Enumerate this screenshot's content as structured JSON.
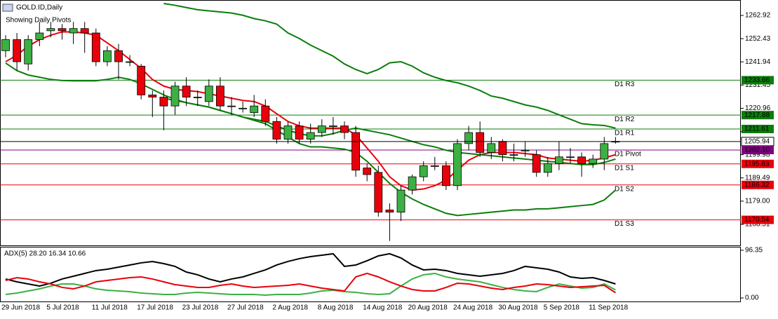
{
  "chart_data": [
    {
      "type": "candlestick",
      "title": "GOLD.ID,Daily",
      "subtitle": "Showing Daily Pivots",
      "categories": [
        "29 Jun 2018",
        null,
        null,
        null,
        "5 Jul 2018",
        null,
        null,
        null,
        "11 Jul 2018",
        null,
        null,
        null,
        "17 Jul 2018",
        null,
        null,
        null,
        "23 Jul 2018",
        null,
        null,
        null,
        "27 Jul 2018",
        null,
        null,
        null,
        "2 Aug 2018",
        null,
        null,
        null,
        "8 Aug 2018",
        null,
        null,
        null,
        "14 Aug 2018",
        null,
        null,
        null,
        "20 Aug 2018",
        null,
        null,
        null,
        "24 Aug 2018",
        null,
        null,
        null,
        "30 Aug 2018",
        null,
        null,
        null,
        "5 Sep 2018",
        null,
        null,
        null,
        "11 Sep 2018",
        null,
        null
      ],
      "open": [
        1247,
        1252,
        1241,
        1252,
        1256,
        1257,
        1255,
        1257,
        1255,
        1242,
        1247,
        1242,
        1240,
        1227,
        1226,
        1222,
        1231,
        1226,
        1224,
        1231,
        1222,
        1221,
        1219,
        1222,
        1215,
        1207,
        1213,
        1207,
        1210,
        1213,
        1213,
        1210,
        1194,
        1192,
        1175,
        1174,
        1184,
        1190,
        1195,
        1195,
        1186,
        1205,
        1210,
        1201,
        1206,
        1200,
        1202,
        1200,
        1192,
        1196,
        1199,
        1199,
        1196,
        1198,
        1206
      ],
      "high": [
        1254,
        1255,
        1254,
        1260,
        1260,
        1259,
        1260,
        1260,
        1257,
        1249,
        1250,
        1245,
        1241,
        1229,
        1229,
        1233,
        1235,
        1229,
        1234,
        1235,
        1226,
        1224,
        1227,
        1225,
        1217,
        1215,
        1215,
        1214,
        1216,
        1217,
        1215,
        1213,
        1196,
        1195,
        1178,
        1186,
        1191,
        1197,
        1199,
        1197,
        1207,
        1213,
        1215,
        1208,
        1207,
        1205,
        1206,
        1202,
        1199,
        1206,
        1203,
        1201,
        1200,
        1208,
        1208
      ],
      "low": [
        1244,
        1238,
        1238,
        1249,
        1253,
        1252,
        1250,
        1246,
        1240,
        1240,
        1234,
        1240,
        1225,
        1217,
        1211,
        1218,
        1222,
        1222,
        1222,
        1220,
        1218,
        1219,
        1217,
        1213,
        1205,
        1205,
        1205,
        1205,
        1208,
        1209,
        1207,
        1190,
        1188,
        1172,
        1161,
        1170,
        1182,
        1188,
        1193,
        1184,
        1184,
        1202,
        1199,
        1198,
        1197,
        1197,
        1199,
        1190,
        1190,
        1193,
        1196,
        1190,
        1194,
        1193,
        1205
      ],
      "close": [
        1252,
        1242,
        1252,
        1255,
        1257,
        1256,
        1257,
        1255,
        1242,
        1247,
        1242,
        1242,
        1227,
        1226,
        1222,
        1231,
        1226,
        1226,
        1231,
        1222,
        1222,
        1221,
        1222,
        1215,
        1207,
        1213,
        1207,
        1210,
        1213,
        1213,
        1210,
        1193,
        1191,
        1174,
        1174,
        1184,
        1190,
        1195,
        1195,
        1186,
        1205,
        1210,
        1201,
        1205,
        1200,
        1200,
        1202,
        1192,
        1196,
        1199,
        1199,
        1196,
        1198,
        1205,
        1206
      ],
      "up_color": "#3cb043",
      "down_color": "#e8000b",
      "series": [
        {
          "color": "#e8000b",
          "values": [
            1242,
            1245,
            1249,
            1252,
            1254,
            1255.5,
            1255.5,
            1255,
            1254,
            1250.5,
            1247,
            1243,
            1239,
            1234,
            1231,
            1229.5,
            1229,
            1228.5,
            1227.5,
            1226.5,
            1225.5,
            1224.5,
            1224,
            1222,
            1218.5,
            1215,
            1213,
            1212,
            1212,
            1212,
            1212,
            1209,
            1203,
            1197,
            1190,
            1186,
            1184,
            1184.5,
            1186,
            1188.5,
            1193,
            1197.5,
            1200,
            1201,
            1201,
            1201,
            1200.5,
            1200,
            1198.5,
            1198,
            1197.5,
            1197,
            1197.5,
            1198.5,
            1200
          ]
        },
        {
          "color": "#0b7d0b",
          "values": [
            1241.4,
            1238,
            1236,
            1235,
            1234,
            1233.5,
            1233.4,
            1233.4,
            1233.4,
            1234,
            1235,
            1234,
            1232,
            1229.5,
            1227,
            1225,
            1223.5,
            1222.5,
            1221.5,
            1220,
            1218.5,
            1217,
            1216,
            1215,
            1213,
            1211,
            1209.5,
            1208.5,
            1208.5,
            1209.5,
            1211,
            1212,
            1211,
            1210,
            1209,
            1207.5,
            1206,
            1204.5,
            1203.5,
            1202,
            1201,
            1200.5,
            1200,
            1199.5,
            1199,
            1198.5,
            1198,
            1197.5,
            1197,
            1196.5,
            1196,
            1195.5,
            1195.5,
            1196.5,
            1198
          ]
        },
        {
          "color": "#0b7d0b",
          "values": [
            null,
            null,
            null,
            null,
            null,
            null,
            null,
            null,
            null,
            null,
            null,
            null,
            null,
            null,
            1268.3,
            1267.5,
            1266.5,
            1265.5,
            1265,
            1264.5,
            1264,
            1263,
            1261.5,
            1260.5,
            1259,
            1255,
            1252.5,
            1249.5,
            1247,
            1244.5,
            1241,
            1238.5,
            1236.6,
            1238.5,
            1241.5,
            1242,
            1240,
            1237,
            1235,
            1233.5,
            1232.5,
            1231,
            1229,
            1226.5,
            1225.5,
            1224,
            1222.5,
            1221.5,
            1220,
            1218,
            1216,
            1214,
            1213.5,
            1213.2,
            1212
          ]
        },
        {
          "color": "#0b7d0b",
          "values": [
            null,
            null,
            null,
            null,
            null,
            null,
            null,
            null,
            null,
            null,
            null,
            null,
            null,
            null,
            1225.5,
            1224.5,
            1223.5,
            1222.5,
            1221.5,
            1220,
            1218.5,
            1217,
            1215.5,
            1214,
            1211,
            1208,
            1205,
            1203.5,
            1203.5,
            1203,
            1202.5,
            1201,
            1197,
            1192,
            1187,
            1183,
            1180,
            1177.5,
            1175.5,
            1173.5,
            1172.5,
            1173,
            1173.5,
            1174,
            1174.5,
            1175,
            1175,
            1175.5,
            1175.5,
            1176,
            1176.5,
            1177,
            1177.5,
            1179.5,
            1184
          ]
        }
      ],
      "levels": [
        {
          "name": "D1 R3",
          "value": 1233.66,
          "value_label": "1233.66",
          "color": "#0b7d0b"
        },
        {
          "name": "D1 R2",
          "value": 1217.88,
          "value_label": "1217.88",
          "color": "#0b7d0b"
        },
        {
          "name": "D1 R1",
          "value": 1211.61,
          "value_label": "1211.61",
          "color": "#0b7d0b"
        },
        {
          "name": "D1 Pivot",
          "value": 1202.1,
          "value_label": "1202.10",
          "color": "#800080"
        },
        {
          "name": "D1 S1",
          "value": 1195.83,
          "value_label": "1195.83",
          "color": "#e8000b"
        },
        {
          "name": "D1 S2",
          "value": 1186.32,
          "value_label": "1186.32",
          "color": "#e8000b"
        },
        {
          "name": "D1 S3",
          "value": 1170.54,
          "value_label": "1170.54",
          "color": "#e8000b"
        }
      ],
      "current_price": 1205.94,
      "ylim": [
        1159.0,
        1269.9
      ],
      "yticks": [
        1262.92,
        1252.43,
        1241.94,
        1231.45,
        1220.96,
        1210.47,
        1199.98,
        1189.49,
        {
          "value": 1179,
          "label": "1179.00"
        },
        1168.51
      ]
    },
    {
      "type": "line",
      "title": "ADX(5) 28.20 16.34 10.66",
      "ylim": [
        -7.1,
        103.4
      ],
      "yticks": [
        96.35,
        {
          "value": 0,
          "label": "0.00"
        }
      ],
      "series": [
        {
          "color": "#000000",
          "values": [
            38.3,
            32.6,
            28.3,
            24.1,
            29.8,
            38.3,
            43.9,
            49.6,
            55.3,
            58.1,
            62.3,
            66.6,
            70.9,
            73.7,
            69.4,
            63.8,
            52.4,
            46.8,
            38.3,
            32.6,
            38.3,
            42.5,
            49.6,
            56.7,
            66.6,
            73.7,
            79.4,
            83.6,
            86.4,
            89.3,
            63.8,
            66.6,
            75.1,
            85.0,
            89.3,
            80.8,
            66.6,
            56.7,
            58.1,
            55.3,
            49.6,
            46.8,
            43.9,
            46.8,
            49.6,
            55.3,
            63.8,
            60.9,
            58.1,
            52.4,
            42.5,
            39.7,
            41.1,
            35.4,
            28.3
          ]
        },
        {
          "color": "#3cb043",
          "values": [
            7.1,
            9.9,
            14.2,
            18.4,
            24.1,
            28.3,
            28.3,
            24.1,
            18.4,
            15.6,
            14.2,
            12.8,
            9.9,
            8.5,
            7.1,
            7.1,
            9.9,
            11.3,
            9.9,
            8.5,
            7.1,
            7.1,
            7.1,
            5.7,
            7.1,
            7.1,
            7.1,
            9.9,
            14.2,
            15.6,
            12.8,
            11.3,
            8.5,
            7.1,
            8.5,
            24.1,
            38.3,
            46.8,
            49.6,
            42.5,
            38.3,
            35.4,
            32.6,
            26.9,
            21.3,
            17.0,
            14.2,
            12.8,
            21.3,
            28.3,
            24.1,
            19.8,
            21.3,
            28.3,
            16.3
          ]
        },
        {
          "color": "#e8000b",
          "values": [
            35.4,
            41.1,
            38.3,
            32.6,
            28.3,
            21.3,
            18.4,
            24.1,
            32.6,
            35.4,
            38.3,
            41.1,
            42.5,
            38.3,
            32.6,
            26.9,
            24.1,
            21.3,
            21.3,
            25.5,
            28.3,
            24.1,
            21.3,
            22.7,
            24.1,
            25.5,
            28.3,
            24.1,
            19.8,
            17.0,
            14.2,
            42.5,
            49.6,
            42.5,
            32.6,
            24.1,
            17.0,
            14.2,
            14.2,
            21.3,
            29.8,
            28.3,
            24.1,
            19.8,
            17.0,
            21.3,
            24.1,
            28.3,
            26.9,
            24.1,
            21.3,
            22.7,
            24.1,
            25.5,
            10.6
          ]
        }
      ]
    }
  ]
}
